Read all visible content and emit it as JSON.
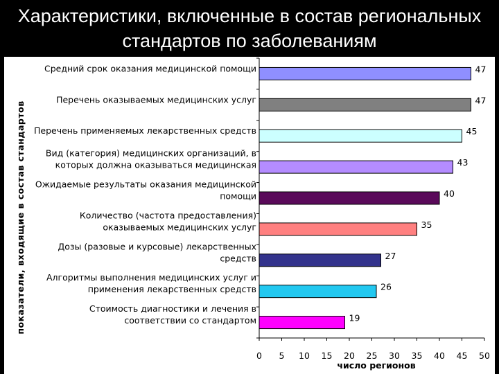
{
  "header": {
    "title_line1": "Характеристики, включенные в состав региональных",
    "title_line2": "стандартов по заболеваниям"
  },
  "chart_data": {
    "type": "bar",
    "orientation": "horizontal",
    "title": "Характеристики, включенные в состав региональных стандартов по заболеваниям",
    "xlabel": "число регионов",
    "ylabel": "показатели, входящие в состав стандартов",
    "xlim": [
      0,
      50
    ],
    "xticks": [
      "0",
      "5",
      "10",
      "15",
      "20",
      "25",
      "30",
      "35",
      "40",
      "45",
      "50"
    ],
    "grid": false,
    "categories": [
      [
        "Средний срок оказания медицинской помощи"
      ],
      [
        "Перечень оказываемых медицинских услуг"
      ],
      [
        "Перечень применяемых лекарственных средств"
      ],
      [
        "Вид (категория) медицинских организаций, в",
        "которых должна оказываться медицинская"
      ],
      [
        "Ожидаемые результаты оказания медицинской",
        "помощи"
      ],
      [
        "Количество (частота предоставления)",
        "оказываемых медицинских услуг"
      ],
      [
        "Дозы (разовые и курсовые) лекарственных",
        "средств"
      ],
      [
        "Алгоритмы выполнения медицинских услуг и",
        "применения лекарственных средств"
      ],
      [
        "Стоимость диагностики и лечения в",
        "соответствии со стандартом"
      ]
    ],
    "values": [
      47,
      47,
      45,
      43,
      40,
      35,
      27,
      26,
      19
    ],
    "value_labels": [
      "47",
      "47",
      "45",
      "43",
      "40",
      "35",
      "27",
      "26",
      "19"
    ],
    "colors": [
      "#8f8fff",
      "#808080",
      "#ccffff",
      "#b48cff",
      "#5a0a5a",
      "#ff8080",
      "#33338c",
      "#22c8f0",
      "#ff00ff"
    ]
  }
}
